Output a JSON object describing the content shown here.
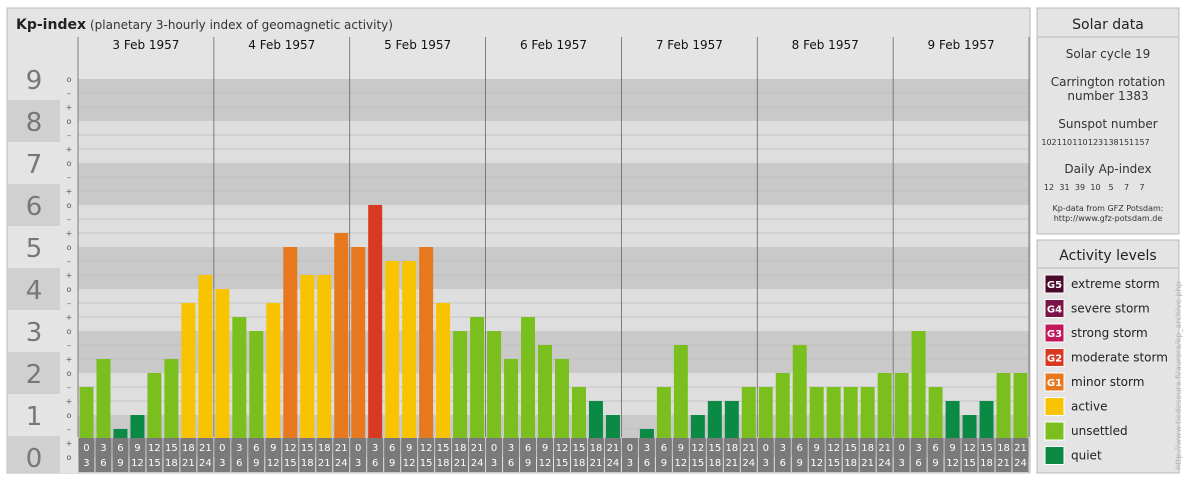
{
  "chart_data": {
    "type": "bar",
    "title": "Kp-index",
    "subtitle": "(planetary 3-hourly index of geomagnetic activity)",
    "ylim": [
      0,
      9
    ],
    "y_ticks": [
      "0",
      "1",
      "2",
      "3",
      "4",
      "5",
      "6",
      "7",
      "8",
      "9"
    ],
    "minor_tick_symbols": [
      "o",
      "+",
      "–"
    ],
    "days": [
      "3 Feb 1957",
      "4 Feb 1957",
      "5 Feb 1957",
      "6 Feb 1957",
      "7 Feb 1957",
      "8 Feb 1957",
      "9 Feb 1957"
    ],
    "slot_labels": [
      [
        "0",
        "3"
      ],
      [
        "3",
        "6"
      ],
      [
        "6",
        "9"
      ],
      [
        "9",
        "12"
      ],
      [
        "12",
        "15"
      ],
      [
        "15",
        "18"
      ],
      [
        "18",
        "21"
      ],
      [
        "21",
        "24"
      ]
    ],
    "values": [
      1.667,
      2.333,
      0.667,
      1.0,
      2.0,
      2.333,
      3.667,
      4.333,
      4.0,
      3.333,
      3.0,
      3.667,
      5.0,
      4.333,
      4.333,
      5.333,
      5.0,
      6.0,
      4.667,
      4.667,
      5.0,
      3.667,
      3.0,
      3.333,
      3.0,
      2.333,
      3.333,
      2.667,
      2.333,
      1.667,
      1.333,
      1.0,
      0.0,
      0.667,
      1.667,
      2.667,
      1.0,
      1.333,
      1.333,
      1.667,
      1.667,
      2.0,
      2.667,
      1.667,
      1.667,
      1.667,
      1.667,
      2.0,
      2.0,
      3.0,
      1.667,
      1.333,
      1.0,
      1.333,
      2.0,
      2.0
    ],
    "level_colors": {
      "quiet": "#0a8a45",
      "unsettled": "#7bbf1f",
      "active": "#f8c300",
      "G1": "#e8781e",
      "G2": "#d83a21",
      "G3": "#c2185b",
      "G4": "#7b1248",
      "G5": "#4a0a2a"
    }
  },
  "solar": {
    "title": "Solar data",
    "cycle": "Solar cycle 19",
    "carrington_line1": "Carrington rotation",
    "carrington_line2": "number 1383",
    "sunspot_label": "Sunspot number",
    "sunspot_values": [
      "102",
      "110",
      "110",
      "123",
      "138",
      "151",
      "157"
    ],
    "ap_label": "Daily Ap-index",
    "ap_values": [
      "12",
      "31",
      "39",
      "10",
      "5",
      "7",
      "7"
    ],
    "source_line1": "Kp-data from GFZ Potsdam:",
    "source_line2": "http://www.gfz-potsdam.de"
  },
  "activity": {
    "title": "Activity levels",
    "items": [
      {
        "badge": "G5",
        "label": "extreme storm",
        "color": "#4a0a2a"
      },
      {
        "badge": "G4",
        "label": "severe storm",
        "color": "#7b1248"
      },
      {
        "badge": "G3",
        "label": "strong storm",
        "color": "#c2185b"
      },
      {
        "badge": "G2",
        "label": "moderate storm",
        "color": "#d83a21"
      },
      {
        "badge": "G1",
        "label": "minor storm",
        "color": "#e8781e"
      },
      {
        "badge": "",
        "label": "active",
        "color": "#f8c300"
      },
      {
        "badge": "",
        "label": "unsettled",
        "color": "#7bbf1f"
      },
      {
        "badge": "",
        "label": "quiet",
        "color": "#0a8a45"
      }
    ]
  },
  "watermark": "http://www.tiedeseura.fi/aurora/kp_archive.php"
}
